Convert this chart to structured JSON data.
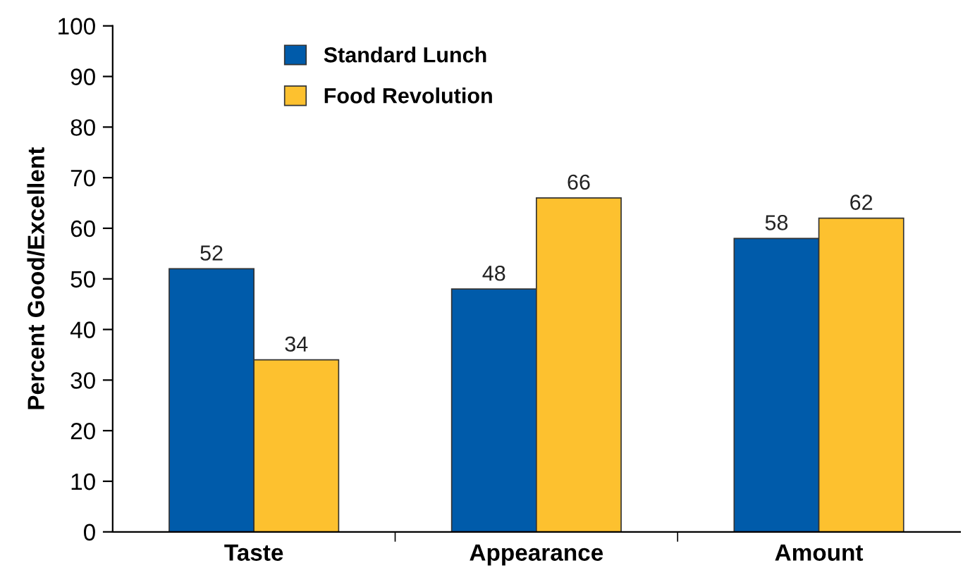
{
  "chart_data": {
    "type": "bar",
    "ylabel": "Percent Good/Excellent",
    "categories": [
      "Taste",
      "Appearance",
      "Amount"
    ],
    "series": [
      {
        "name": "Standard Lunch",
        "color": "#005baa",
        "values": [
          52,
          48,
          58
        ]
      },
      {
        "name": "Food Revolution",
        "color": "#fdc12f",
        "values": [
          34,
          66,
          62
        ]
      }
    ],
    "ylim": [
      0,
      100
    ],
    "yticks": [
      0,
      10,
      20,
      30,
      40,
      50,
      60,
      70,
      80,
      90,
      100
    ],
    "data_labels": true,
    "grid": false,
    "legend": "top left"
  }
}
